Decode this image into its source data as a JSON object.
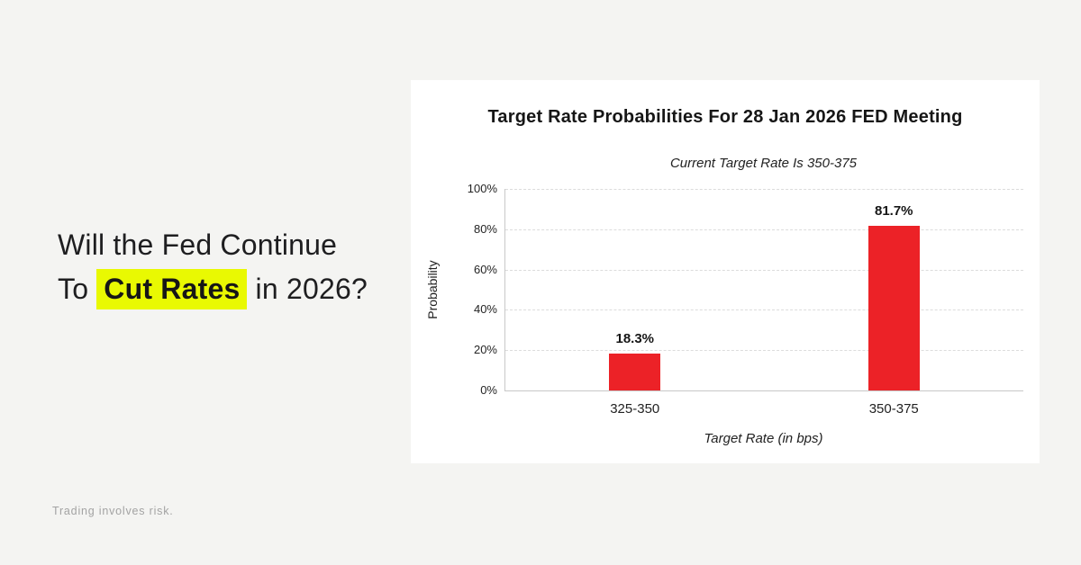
{
  "page": {
    "background_color": "#f4f4f2",
    "card_color": "#ffffff"
  },
  "headline": {
    "line1": "Will the Fed Continue",
    "line2_prefix": "To ",
    "line2_highlight": "Cut Rates",
    "line2_suffix": " in 2026?",
    "highlight_color": "#e9f902",
    "text_color": "#1e1e20"
  },
  "disclaimer": {
    "text": "Trading involves risk."
  },
  "card": {
    "title": "Target Rate Probabilities For 28 Jan 2026 FED Meeting",
    "subtitle": "Current Target Rate Is 350-375"
  },
  "chart_data": {
    "type": "bar",
    "title": "Target Rate Probabilities For 28 Jan 2026 FED Meeting",
    "subtitle": "Current Target Rate Is 350-375",
    "categories": [
      "325-350",
      "350-375"
    ],
    "values": [
      18.3,
      81.7
    ],
    "value_labels": [
      "18.3%",
      "81.7%"
    ],
    "xlabel": "Target Rate (in bps)",
    "ylabel": "Probability",
    "ylim": [
      0,
      100
    ],
    "yticks": [
      0,
      20,
      40,
      60,
      80,
      100
    ],
    "ytick_labels": [
      "0%",
      "20%",
      "40%",
      "60%",
      "80%",
      "100%"
    ],
    "bar_color": "#ec2227",
    "grid": "horizontal dashed",
    "legend": "none"
  }
}
